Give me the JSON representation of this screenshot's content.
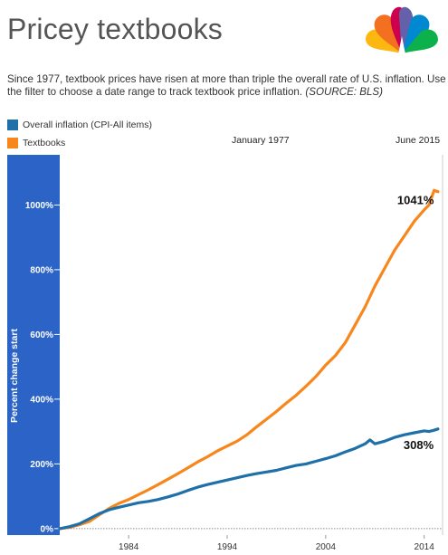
{
  "header": {
    "title": "Pricey textbooks",
    "description": "Since 1977, textbook prices have risen at more than triple the overall rate of U.S. inflation. Use the filter to choose a date range to track textbook price inflation.",
    "source": "(SOURCE: BLS)",
    "logo_icon": "nbc-peacock-icon"
  },
  "filter": {
    "start_label": "January 1977",
    "end_label": "June 2015"
  },
  "colors": {
    "inflation": "#1f6fa8",
    "textbooks": "#f7861c",
    "axis_panel": "#2b63c7"
  },
  "chart_data": {
    "type": "line",
    "title": "",
    "xlabel": "",
    "ylabel": "Percent change start",
    "xlim": [
      1977,
      2015.5
    ],
    "ylim": [
      -20,
      1155
    ],
    "x_ticks": [
      1984,
      1994,
      2004,
      2014
    ],
    "x_tick_labels": [
      "1984",
      "1994",
      "2004",
      "2014"
    ],
    "y_ticks": [
      0,
      200,
      400,
      600,
      800,
      1000
    ],
    "y_tick_labels": [
      "0%",
      "200%",
      "400%",
      "600%",
      "800%",
      "1000%"
    ],
    "grid": false,
    "legend_position": "top-left",
    "series": [
      {
        "name": "Overall inflation (CPI-All items)",
        "color": "#1f6fa8",
        "x": [
          1977.0,
          1978.0,
          1979.0,
          1980.0,
          1981.0,
          1982.0,
          1983.0,
          1984.0,
          1985.0,
          1986.0,
          1987.0,
          1988.0,
          1989.0,
          1990.0,
          1991.0,
          1992.0,
          1993.0,
          1994.0,
          1995.0,
          1996.0,
          1997.0,
          1998.0,
          1999.0,
          2000.0,
          2001.0,
          2002.0,
          2003.0,
          2004.0,
          2005.0,
          2006.0,
          2007.0,
          2008.0,
          2008.5,
          2009.0,
          2010.0,
          2011.0,
          2012.0,
          2013.0,
          2014.0,
          2014.5,
          2015.0,
          2015.4
        ],
        "y": [
          0,
          6,
          15,
          30,
          46,
          58,
          66,
          73,
          80,
          84,
          90,
          98,
          107,
          118,
          128,
          136,
          143,
          150,
          157,
          164,
          170,
          175,
          180,
          188,
          195,
          200,
          208,
          216,
          225,
          237,
          248,
          262,
          274,
          262,
          270,
          282,
          290,
          296,
          302,
          300,
          304,
          308
        ]
      },
      {
        "name": "Textbooks",
        "color": "#f7861c",
        "x": [
          1977.0,
          1978.0,
          1979.0,
          1980.0,
          1981.0,
          1982.0,
          1983.0,
          1984.0,
          1985.0,
          1986.0,
          1987.0,
          1988.0,
          1989.0,
          1990.0,
          1991.0,
          1992.0,
          1993.0,
          1994.0,
          1995.0,
          1996.0,
          1997.0,
          1998.0,
          1999.0,
          2000.0,
          2001.0,
          2002.0,
          2003.0,
          2004.0,
          2005.0,
          2006.0,
          2007.0,
          2008.0,
          2009.0,
          2010.0,
          2011.0,
          2012.0,
          2013.0,
          2014.0,
          2014.5,
          2015.0,
          2015.4
        ],
        "y": [
          0,
          4,
          12,
          22,
          42,
          62,
          78,
          90,
          105,
          120,
          136,
          153,
          170,
          188,
          206,
          222,
          240,
          255,
          270,
          290,
          315,
          338,
          362,
          388,
          412,
          440,
          470,
          505,
          535,
          575,
          630,
          685,
          750,
          805,
          860,
          905,
          950,
          985,
          1000,
          1045,
          1041
        ]
      }
    ],
    "end_labels": [
      {
        "series": "Textbooks",
        "text": "1041%"
      },
      {
        "series": "Overall inflation (CPI-All items)",
        "text": "308%"
      }
    ]
  }
}
